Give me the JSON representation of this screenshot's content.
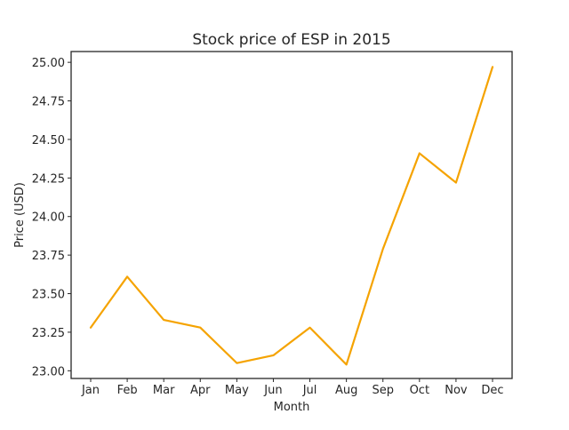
{
  "chart_data": {
    "type": "line",
    "title": "Stock price of ESP in 2015",
    "xlabel": "Month",
    "ylabel": "Price (USD)",
    "categories": [
      "Jan",
      "Feb",
      "Mar",
      "Apr",
      "May",
      "Jun",
      "Jul",
      "Aug",
      "Sep",
      "Oct",
      "Nov",
      "Dec"
    ],
    "series": [
      {
        "values": [
          23.28,
          23.61,
          23.33,
          23.28,
          23.05,
          23.1,
          23.28,
          23.04,
          23.79,
          24.41,
          24.22,
          24.97
        ],
        "color": "#f5a300"
      }
    ],
    "ylim": [
      22.95,
      25.07
    ],
    "yticks": [
      23.0,
      23.25,
      23.5,
      23.75,
      24.0,
      24.25,
      24.5,
      24.75,
      25.0
    ],
    "ytick_labels": [
      "23.00",
      "23.25",
      "23.50",
      "23.75",
      "24.00",
      "24.25",
      "24.50",
      "24.75",
      "25.00"
    ],
    "grid": false,
    "legend": "none"
  }
}
